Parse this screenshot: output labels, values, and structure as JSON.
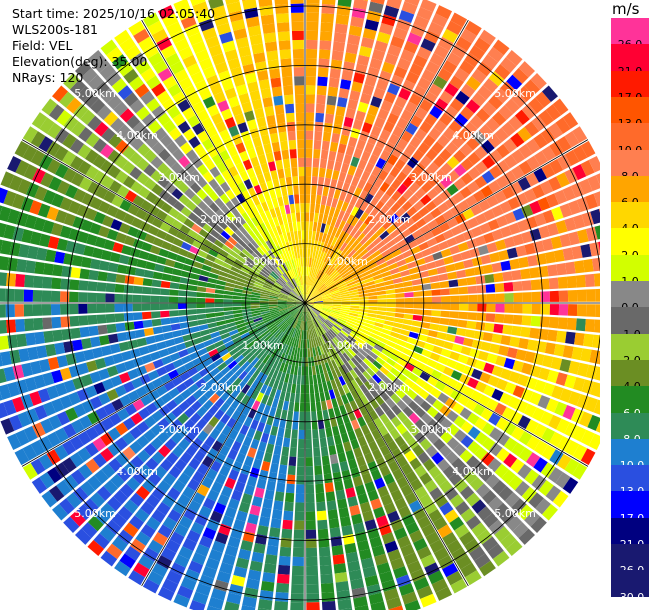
{
  "header": {
    "start_time": "Start time: 2025/10/16 02:05:40",
    "instrument": "WLS200s-181",
    "field": "Field: VEL",
    "elevation": "Elevation(deg): 35.00",
    "nrays": "NRays: 120"
  },
  "chart_data": {
    "type": "heatmap",
    "subtype": "polar-ppi",
    "field": "VEL",
    "elevation_deg": 35.0,
    "n_rays": 120,
    "range_rings_km": [
      1,
      2,
      3,
      4,
      5
    ],
    "ring_labels": [
      "1.00km",
      "2.00km",
      "3.00km",
      "4.00km",
      "5.00km"
    ],
    "max_range_km": 5.5,
    "colorbar": {
      "unit": "m/s",
      "levels": [
        "26.0",
        "21.0",
        "17.0",
        "13.0",
        "10.0",
        "8.0",
        "6.0",
        "4.0",
        "2.0",
        "1.0",
        "0.0",
        "-1.0",
        "-2.0",
        "-4.0",
        "-6.0",
        "-8.0",
        "-10.0",
        "-13.0",
        "-17.0",
        "-21.0",
        "-26.0",
        "-30.0"
      ],
      "colors": [
        "#ff3399",
        "#ff0033",
        "#ff1a00",
        "#ff5500",
        "#ff6a2a",
        "#ff7f50",
        "#ffa500",
        "#ffd700",
        "#ffff00",
        "#d2ff00",
        "#888888",
        "#696969",
        "#9acd32",
        "#6b8e23",
        "#228b22",
        "#2e8b57",
        "#1e7fd0",
        "#2a4fe0",
        "#0000ff",
        "#000080",
        "#191970",
        "#191970"
      ],
      "label_colors": [
        "#000000",
        "#000000",
        "#000000",
        "#000000",
        "#000000",
        "#000000",
        "#000000",
        "#000000",
        "#000000",
        "#000000",
        "#000000",
        "#000000",
        "#000000",
        "#000000",
        "#ffffff",
        "#ffffff",
        "#ffffff",
        "#ffffff",
        "#ffffff",
        "#ffffff",
        "#ffffff",
        "#ffffff"
      ]
    },
    "wind_model": {
      "axis_toward_azimuth_deg": 45,
      "vmax_ms": 10.0,
      "note_sign": "positive = away"
    }
  }
}
